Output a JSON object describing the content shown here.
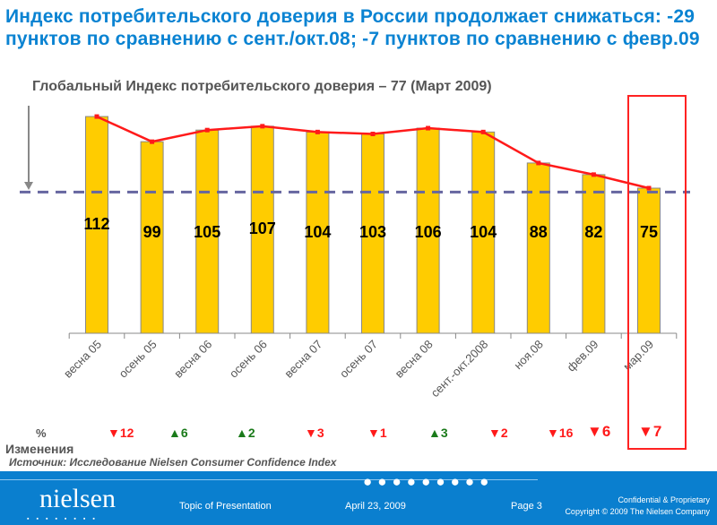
{
  "title": "Индекс потребительского доверия в России продолжает снижаться: -29 пунктов по сравнению с сент./окт.08; -7 пунктов по сравнению с февр.09",
  "subtitle": "Глобальный Индекс потребительского доверия – 77 (Март 2009)",
  "chart_data": {
    "type": "bar",
    "title": "Глобальный Индекс потребительского доверия – 77 (Март 2009)",
    "categories": [
      "весна 05",
      "осень 05",
      "весна 06",
      "осень 06",
      "весна 07",
      "осень 07",
      "весна 08",
      "сент.-окт.2008",
      "ноя.08",
      "фев.09",
      "мар.09"
    ],
    "values": [
      112,
      99,
      105,
      107,
      104,
      103,
      106,
      104,
      88,
      82,
      75
    ],
    "value_labels": [
      "112",
      "99",
      "105",
      "107",
      "104",
      "103",
      "106",
      "104",
      "88",
      "82",
      "75"
    ],
    "line_series": {
      "name": "trend",
      "values": [
        112,
        99,
        105,
        107,
        104,
        103,
        106,
        104,
        88,
        82,
        75
      ]
    },
    "reference_line": {
      "value": 73,
      "style": "dashed"
    },
    "ylim": [
      0,
      120
    ],
    "highlighted_category": "мар.09",
    "colors": {
      "bar": "#ffcc00",
      "line": "#ff1a1a",
      "reference": "#6666a0"
    }
  },
  "changes": {
    "pct_label": "%",
    "label": "Изменения",
    "items": [
      {
        "dir": "down",
        "text": "▼12"
      },
      {
        "dir": "up",
        "text": "▲6"
      },
      {
        "dir": "up",
        "text": "▲2"
      },
      {
        "dir": "down",
        "text": "▼3"
      },
      {
        "dir": "down",
        "text": "▼1"
      },
      {
        "dir": "up",
        "text": "▲3"
      },
      {
        "dir": "down",
        "text": "▼2"
      },
      {
        "dir": "down",
        "text": "▼16"
      },
      {
        "dir": "down",
        "text": "▼6"
      },
      {
        "dir": "down",
        "text": "▼7"
      }
    ],
    "colors": {
      "up": "#1a7a1a",
      "down": "#ff1a1a"
    }
  },
  "source": "Источник: Исследование Nielsen Consumer Confidence Index",
  "footer": {
    "logo": "nielsen",
    "topic": "Topic of Presentation",
    "date": "April 23, 2009",
    "page": "Page 3",
    "confidential": "Confidential & Proprietary",
    "copyright": "Copyright © 2009 The Nielsen Company"
  }
}
